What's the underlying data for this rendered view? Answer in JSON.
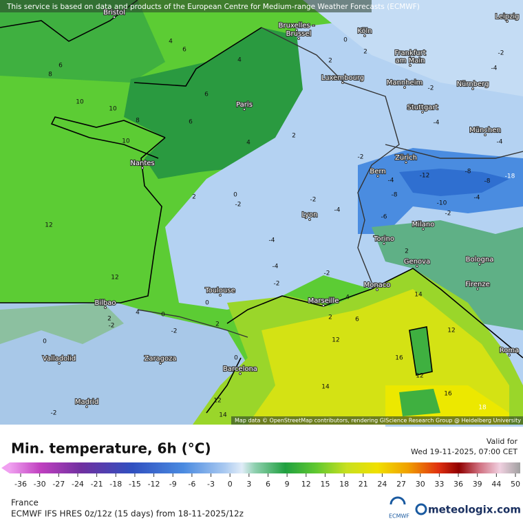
{
  "header": {
    "notice": "This service is based on data and products of the European Centre for Medium-range Weather Forecasts (ECMWF)"
  },
  "map": {
    "attribution": "Map data © OpenStreetMap contributors, rendering GIScience Research Group @ Heidelberg University",
    "cities": [
      "Bristol",
      "Bruxelles -",
      "Brussel",
      "Köln",
      "Leipzig",
      "Frankfurt",
      "am Main",
      "Luxembourg",
      "Mannheim",
      "Nürnberg",
      "Paris",
      "Stuttgart",
      "München",
      "Nantes",
      "Zürich",
      "Bern",
      "Lyon",
      "Milano",
      "Torino",
      "Bologna",
      "Genova",
      "Toulouse",
      "Monaco",
      "Marseille",
      "Firenze",
      "Bilbao",
      "Valladolid",
      "Zaragoza",
      "Barcelona",
      "Roma",
      "Madrid"
    ],
    "contour_labels": [
      6,
      8,
      4,
      6,
      4,
      6,
      10,
      10,
      10,
      8,
      6,
      4,
      2,
      2,
      2,
      0,
      -2,
      -4,
      -2,
      -4,
      -4,
      -2,
      -4,
      -8,
      -12,
      -8,
      -4,
      -10,
      -2,
      -6,
      -8,
      -4,
      -2,
      -2,
      0,
      2,
      -4,
      -4,
      -2,
      -2,
      0,
      12,
      12,
      12,
      14,
      16,
      12,
      16,
      14,
      12,
      14,
      18,
      12,
      2,
      -2,
      2,
      0,
      -2,
      -2,
      2,
      0,
      2,
      4,
      6,
      4,
      0,
      -18
    ]
  },
  "legend": {
    "title": "Min. temperature, 6h (°C)",
    "valid_label": "Valid for",
    "valid_time": "Wed 19-11-2025, 07:00 CET",
    "ticks": [
      -36,
      -30,
      -27,
      -24,
      -21,
      -18,
      -15,
      -12,
      -9,
      -6,
      -3,
      0,
      3,
      6,
      9,
      12,
      15,
      18,
      21,
      24,
      27,
      30,
      33,
      36,
      39,
      44,
      50
    ]
  },
  "footer": {
    "region": "France",
    "model": "ECMWF IFS HRES 0z/12z (15 days) from  18-11-2025/12z",
    "ecmwf_logo": "ECMWF",
    "brand": "meteologix.com"
  }
}
